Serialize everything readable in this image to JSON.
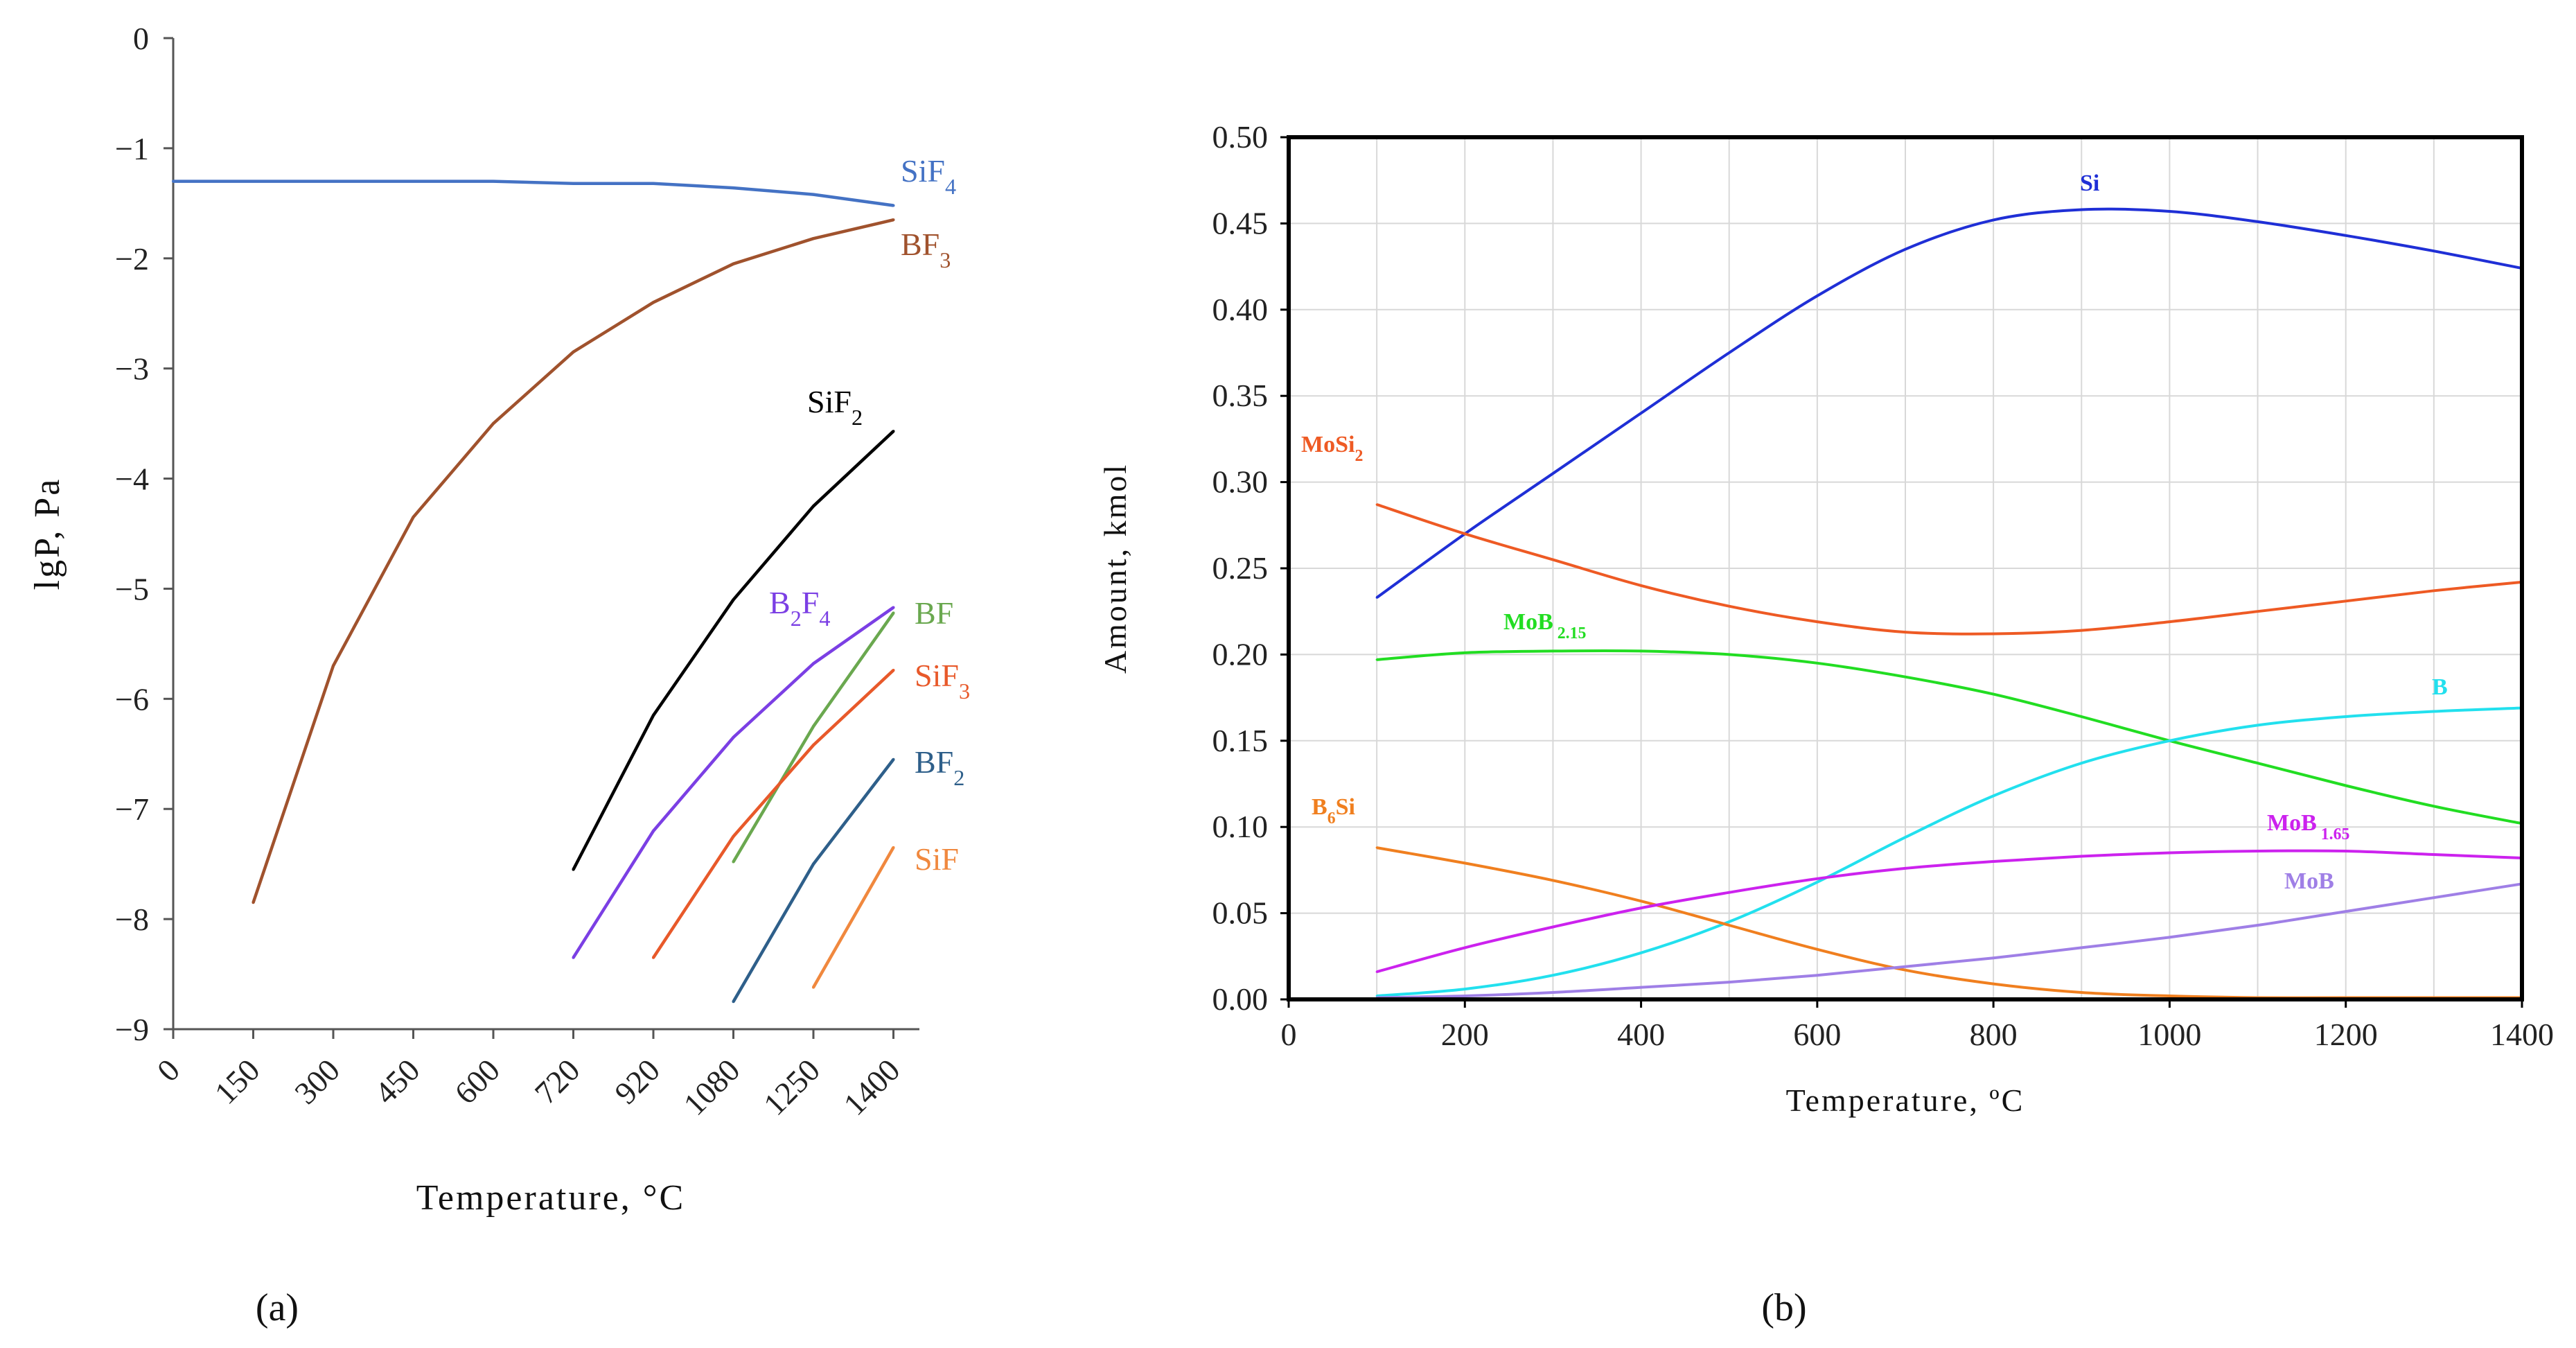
{
  "chart_data": [
    {
      "id": "a",
      "type": "line",
      "panel_label": "(a)",
      "xlabel": "Temperature, °C",
      "ylabel": "lgP, Pa",
      "x_categories": [
        "0",
        "150",
        "300",
        "450",
        "600",
        "720",
        "920",
        "1080",
        "1250",
        "1400"
      ],
      "yticks": [
        "0",
        "−1",
        "−2",
        "−3",
        "−4",
        "−5",
        "−6",
        "−7",
        "−8",
        "−9"
      ],
      "ylim": [
        -9,
        0
      ],
      "grid": false,
      "series": [
        {
          "name": "SiF4",
          "label_main": "SiF",
          "label_sub": "4",
          "color": "#4472c4",
          "points": [
            [
              0,
              -1.3
            ],
            [
              1,
              -1.3
            ],
            [
              2,
              -1.3
            ],
            [
              3,
              -1.3
            ],
            [
              4,
              -1.3
            ],
            [
              5,
              -1.32
            ],
            [
              6,
              -1.32
            ],
            [
              7,
              -1.36
            ],
            [
              8,
              -1.42
            ],
            [
              9,
              -1.52
            ]
          ]
        },
        {
          "name": "BF3",
          "label_main": "BF",
          "label_sub": "3",
          "color": "#a0522d",
          "points": [
            [
              1,
              -7.85
            ],
            [
              2,
              -5.7
            ],
            [
              3,
              -4.35
            ],
            [
              4,
              -3.5
            ],
            [
              5,
              -2.85
            ],
            [
              6,
              -2.4
            ],
            [
              7,
              -2.05
            ],
            [
              8,
              -1.82
            ],
            [
              9,
              -1.65
            ]
          ]
        },
        {
          "name": "SiF2",
          "label_main": "SiF",
          "label_sub": "2",
          "color": "#000000",
          "points": [
            [
              5,
              -7.55
            ],
            [
              6,
              -6.15
            ],
            [
              7,
              -5.1
            ],
            [
              8,
              -4.25
            ],
            [
              9,
              -3.57
            ]
          ]
        },
        {
          "name": "B2F4",
          "label_main": "B",
          "label_sub": "2",
          "label_main2": "F",
          "label_sub2": "4",
          "color": "#7b3fe4",
          "points": [
            [
              5,
              -8.35
            ],
            [
              6,
              -7.2
            ],
            [
              7,
              -6.35
            ],
            [
              8,
              -5.68
            ],
            [
              9,
              -5.17
            ]
          ]
        },
        {
          "name": "BF",
          "label_main": "BF",
          "label_sub": "",
          "color": "#6aa84f",
          "points": [
            [
              7,
              -7.48
            ],
            [
              8,
              -6.25
            ],
            [
              9,
              -5.22
            ]
          ]
        },
        {
          "name": "SiF3",
          "label_main": "SiF",
          "label_sub": "3",
          "color": "#e8592a",
          "points": [
            [
              6,
              -8.35
            ],
            [
              7,
              -7.25
            ],
            [
              8,
              -6.42
            ],
            [
              9,
              -5.74
            ]
          ]
        },
        {
          "name": "BF2",
          "label_main": "BF",
          "label_sub": "2",
          "color": "#2e5f8a",
          "points": [
            [
              7,
              -8.75
            ],
            [
              8,
              -7.5
            ],
            [
              9,
              -6.55
            ]
          ]
        },
        {
          "name": "SiF",
          "label_main": "SiF",
          "label_sub": "",
          "color": "#f0883e",
          "points": [
            [
              8,
              -8.62
            ],
            [
              9,
              -7.35
            ]
          ]
        }
      ]
    },
    {
      "id": "b",
      "type": "line",
      "panel_label": "(b)",
      "xlabel": "Temperature, ºC",
      "ylabel": "Amount, kmol",
      "xticks": [
        "0",
        "200",
        "400",
        "600",
        "800",
        "1000",
        "1200",
        "1400"
      ],
      "yticks": [
        "0.00",
        "0.05",
        "0.10",
        "0.15",
        "0.20",
        "0.25",
        "0.30",
        "0.35",
        "0.40",
        "0.45",
        "0.50"
      ],
      "xlim": [
        0,
        1400
      ],
      "ylim": [
        0,
        0.5
      ],
      "grid": true,
      "series": [
        {
          "name": "Si",
          "label_main": "Si",
          "label_sub": "",
          "color": "#1f2fd6",
          "x": [
            100,
            200,
            300,
            400,
            500,
            600,
            700,
            800,
            900,
            1000,
            1100,
            1200,
            1300,
            1400
          ],
          "y": [
            0.233,
            0.27,
            0.305,
            0.34,
            0.375,
            0.408,
            0.435,
            0.452,
            0.458,
            0.457,
            0.451,
            0.443,
            0.434,
            0.424
          ]
        },
        {
          "name": "MoSi2",
          "label_main": "MoSi",
          "label_sub": "2",
          "color": "#ee5a24",
          "x": [
            100,
            200,
            300,
            400,
            500,
            600,
            700,
            800,
            900,
            1000,
            1100,
            1200,
            1300,
            1400
          ],
          "y": [
            0.287,
            0.27,
            0.255,
            0.24,
            0.228,
            0.219,
            0.213,
            0.212,
            0.214,
            0.219,
            0.225,
            0.231,
            0.237,
            0.242
          ]
        },
        {
          "name": "MoB2.15",
          "label_main": "MoB",
          "label_sub": " 2.15",
          "color": "#22dd22",
          "x": [
            100,
            200,
            300,
            400,
            500,
            600,
            700,
            800,
            900,
            1000,
            1100,
            1200,
            1300,
            1400
          ],
          "y": [
            0.197,
            0.201,
            0.202,
            0.202,
            0.2,
            0.195,
            0.187,
            0.177,
            0.164,
            0.15,
            0.137,
            0.124,
            0.112,
            0.102
          ]
        },
        {
          "name": "B",
          "label_main": "B",
          "label_sub": "",
          "color": "#22e0ee",
          "x": [
            100,
            200,
            300,
            400,
            500,
            600,
            700,
            800,
            900,
            1000,
            1100,
            1200,
            1300,
            1400
          ],
          "y": [
            0.002,
            0.006,
            0.014,
            0.027,
            0.045,
            0.068,
            0.094,
            0.118,
            0.137,
            0.15,
            0.159,
            0.164,
            0.167,
            0.169
          ]
        },
        {
          "name": "B6Si",
          "label_main": "B",
          "label_sub": "6",
          "label_main2": "Si",
          "label_sub2": "",
          "color": "#f07f1f",
          "x": [
            100,
            200,
            300,
            400,
            500,
            600,
            700,
            800,
            900,
            1000,
            1100,
            1200,
            1300,
            1400
          ],
          "y": [
            0.088,
            0.079,
            0.069,
            0.057,
            0.043,
            0.029,
            0.017,
            0.009,
            0.004,
            0.002,
            0.001,
            0.001,
            0.001,
            0.001
          ]
        },
        {
          "name": "MoB1.65",
          "label_main": "MoB",
          "label_sub": " 1.65",
          "color": "#cc22ee",
          "x": [
            100,
            200,
            300,
            400,
            500,
            600,
            700,
            800,
            900,
            1000,
            1100,
            1200,
            1300,
            1400
          ],
          "y": [
            0.016,
            0.03,
            0.042,
            0.053,
            0.062,
            0.07,
            0.076,
            0.08,
            0.083,
            0.085,
            0.086,
            0.086,
            0.084,
            0.082
          ]
        },
        {
          "name": "MoB",
          "label_main": "MoB",
          "label_sub": "",
          "color": "#9f7fe6",
          "x": [
            100,
            200,
            300,
            400,
            500,
            600,
            700,
            800,
            900,
            1000,
            1100,
            1200,
            1300,
            1400
          ],
          "y": [
            0.001,
            0.002,
            0.004,
            0.007,
            0.01,
            0.014,
            0.019,
            0.024,
            0.03,
            0.036,
            0.043,
            0.051,
            0.059,
            0.067
          ]
        }
      ]
    }
  ]
}
